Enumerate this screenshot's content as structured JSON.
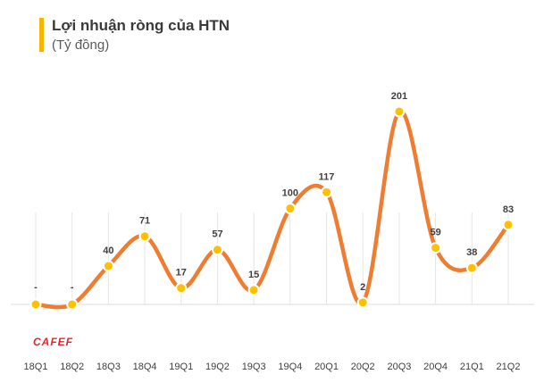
{
  "header": {
    "title": "Lợi nhuận ròng của HTN",
    "subtitle": "(Tỷ đồng)"
  },
  "logo": {
    "text": "CAFEF"
  },
  "colors": {
    "line": "#ee7d31",
    "marker": "#ffc000",
    "accent_bar": "#f7b500",
    "logo": "#e3262b"
  },
  "chart_data": {
    "type": "line",
    "title": "Lợi nhuận ròng của HTN",
    "subtitle": "(Tỷ đồng)",
    "smooth": true,
    "categories": [
      "18Q1",
      "18Q2",
      "18Q3",
      "18Q4",
      "19Q1",
      "19Q2",
      "19Q3",
      "19Q4",
      "20Q1",
      "20Q2",
      "20Q3",
      "20Q4",
      "21Q1",
      "21Q2"
    ],
    "values": [
      0,
      0,
      40,
      71,
      17,
      57,
      15,
      100,
      117,
      2,
      201,
      59,
      38,
      83
    ],
    "data_labels": [
      "-",
      "-",
      "40",
      "71",
      "17",
      "57",
      "15",
      "100",
      "117",
      "2",
      "201",
      "59",
      "38",
      "83"
    ],
    "ylim": [
      0,
      201
    ],
    "grid": false,
    "legend": "none"
  }
}
